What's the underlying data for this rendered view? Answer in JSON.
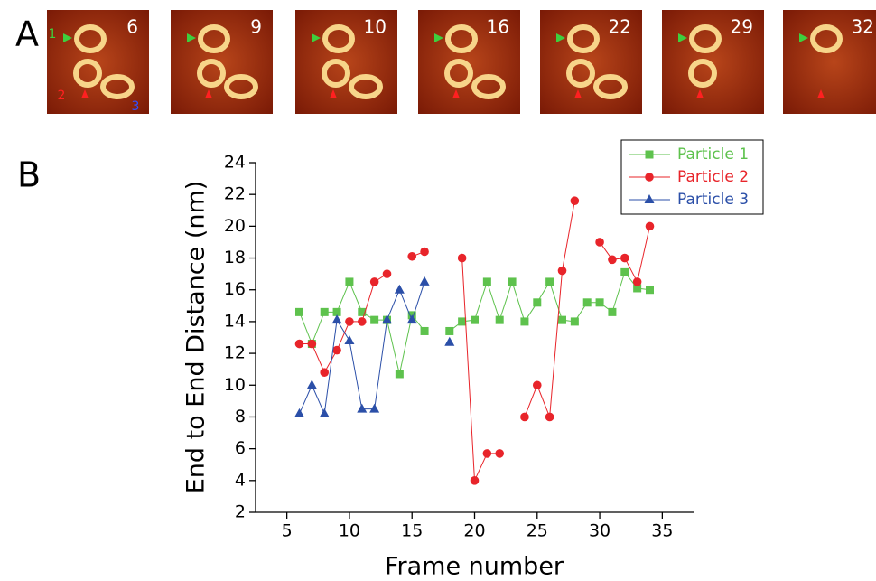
{
  "panel_a": {
    "label": "A",
    "frames": [
      6,
      9,
      10,
      16,
      22,
      29,
      32
    ],
    "particle_markers": [
      "1",
      "2",
      "3"
    ]
  },
  "chart_data": {
    "type": "line",
    "panel_label": "B",
    "x_label": "Frame number",
    "y_label": "End to End Distance (nm)",
    "x": [
      6,
      7,
      8,
      9,
      10,
      11,
      12,
      13,
      14,
      15,
      16,
      17,
      18,
      19,
      20,
      21,
      22,
      23,
      24,
      25,
      26,
      27,
      28,
      29,
      30,
      31,
      32,
      33,
      34
    ],
    "series": [
      {
        "name": "Particle 1",
        "color": "#5ec24d",
        "marker": "square",
        "values": [
          14.6,
          12.6,
          14.6,
          14.6,
          16.5,
          14.6,
          14.1,
          14.1,
          10.7,
          14.4,
          13.4,
          null,
          13.4,
          14.0,
          14.1,
          16.5,
          14.1,
          16.5,
          14.0,
          15.2,
          16.5,
          14.1,
          14.0,
          15.2,
          15.2,
          14.6,
          17.1,
          16.1,
          16.0
        ]
      },
      {
        "name": "Particle 2",
        "color": "#e8242a",
        "marker": "circle",
        "values": [
          12.6,
          12.6,
          10.8,
          12.2,
          14.0,
          14.0,
          16.5,
          17.0,
          null,
          18.1,
          18.4,
          null,
          null,
          18.0,
          4.0,
          5.7,
          5.7,
          null,
          8.0,
          10.0,
          8.0,
          17.2,
          21.6,
          null,
          19.0,
          17.9,
          18.0,
          16.5,
          20.0
        ]
      },
      {
        "name": "Particle 3",
        "color": "#2b4fa8",
        "marker": "triangle",
        "values": [
          8.2,
          10.0,
          8.2,
          14.1,
          12.8,
          8.5,
          8.5,
          14.1,
          16.0,
          14.1,
          16.5,
          null,
          12.7,
          null,
          null,
          null,
          null,
          null,
          null,
          null,
          null,
          null,
          null,
          null,
          null,
          null,
          null,
          null,
          null
        ]
      }
    ],
    "xlim": [
      2.5,
      37.5
    ],
    "ylim": [
      2,
      24
    ],
    "xticks": [
      5,
      10,
      15,
      20,
      25,
      30,
      35
    ],
    "yticks": [
      2,
      4,
      6,
      8,
      10,
      12,
      14,
      16,
      18,
      20,
      22,
      24
    ],
    "legend": "top-right"
  }
}
